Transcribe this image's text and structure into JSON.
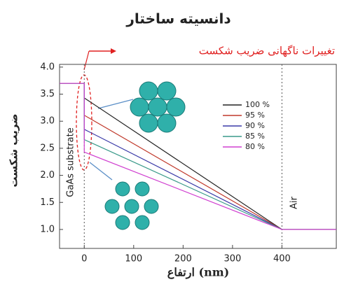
{
  "chart_data": {
    "type": "line",
    "title": "دانسیته ساختار",
    "annotation": "تغییرات ناگهانی ضریب شکست",
    "substrate_label": "GaAs substrate",
    "air_label": "Air",
    "xlabel": "ارتفاع (nm)",
    "ylabel": "ضریب شکست",
    "x": [
      -50,
      0,
      0,
      400,
      510
    ],
    "series": [
      {
        "name": "100 %",
        "color": "#222222",
        "values": [
          3.7,
          3.7,
          3.43,
          1.0,
          1.0
        ]
      },
      {
        "name": "95 %",
        "color": "#c0392b",
        "values": [
          3.7,
          3.7,
          3.11,
          1.0,
          1.0
        ]
      },
      {
        "name": "90 %",
        "color": "#3a3aa8",
        "values": [
          3.7,
          3.7,
          2.85,
          1.0,
          1.0
        ]
      },
      {
        "name": "85 %",
        "color": "#3a9a8a",
        "values": [
          3.7,
          3.7,
          2.66,
          1.0,
          1.0
        ]
      },
      {
        "name": "80 %",
        "color": "#d040d0",
        "values": [
          3.7,
          3.7,
          2.43,
          1.0,
          1.0
        ]
      }
    ],
    "vlines": [
      0,
      400
    ],
    "xlim": [
      -50,
      510
    ],
    "ylim": [
      0.65,
      4.05
    ],
    "xticks": [
      0,
      100,
      200,
      300,
      400
    ],
    "yticks": [
      {
        "value": 1.0,
        "label": "1.0"
      },
      {
        "value": 1.5,
        "label": "1.5"
      },
      {
        "value": 2.0,
        "label": "2.0"
      },
      {
        "value": 2.5,
        "label": "2.5"
      },
      {
        "value": 3.0,
        "label": "3.0"
      },
      {
        "value": 3.5,
        "label": "3.5"
      },
      {
        "value": 4.0,
        "label": "4.0"
      }
    ]
  }
}
